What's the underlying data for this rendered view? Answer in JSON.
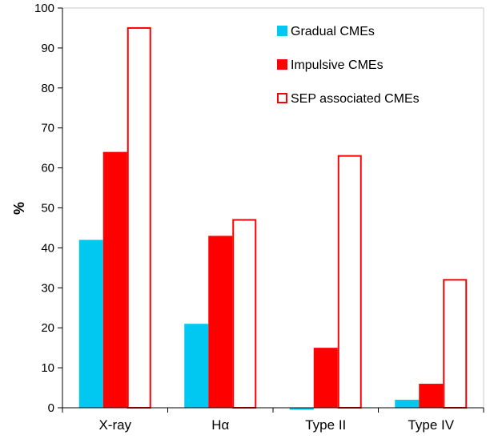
{
  "chart_data": {
    "type": "bar",
    "categories": [
      "X-ray",
      "Hα",
      "Type II",
      "Type IV"
    ],
    "series": [
      {
        "name": "Gradual CMEs",
        "values": [
          42,
          21,
          -0.5,
          2
        ],
        "color": "#00c8f0",
        "style": "filled"
      },
      {
        "name": "Impulsive CMEs",
        "values": [
          64,
          43,
          15,
          6
        ],
        "color": "#ff0000",
        "style": "filled"
      },
      {
        "name": "SEP associated CMEs",
        "values": [
          95,
          47,
          63,
          32
        ],
        "color": "#ff0000",
        "style": "outline"
      }
    ],
    "ylabel": "%",
    "xlabel": "",
    "ylim": [
      0,
      100
    ],
    "yticks": [
      0,
      10,
      20,
      30,
      40,
      50,
      60,
      70,
      80,
      90,
      100
    ],
    "grid": false,
    "legend_position": "top-right"
  }
}
